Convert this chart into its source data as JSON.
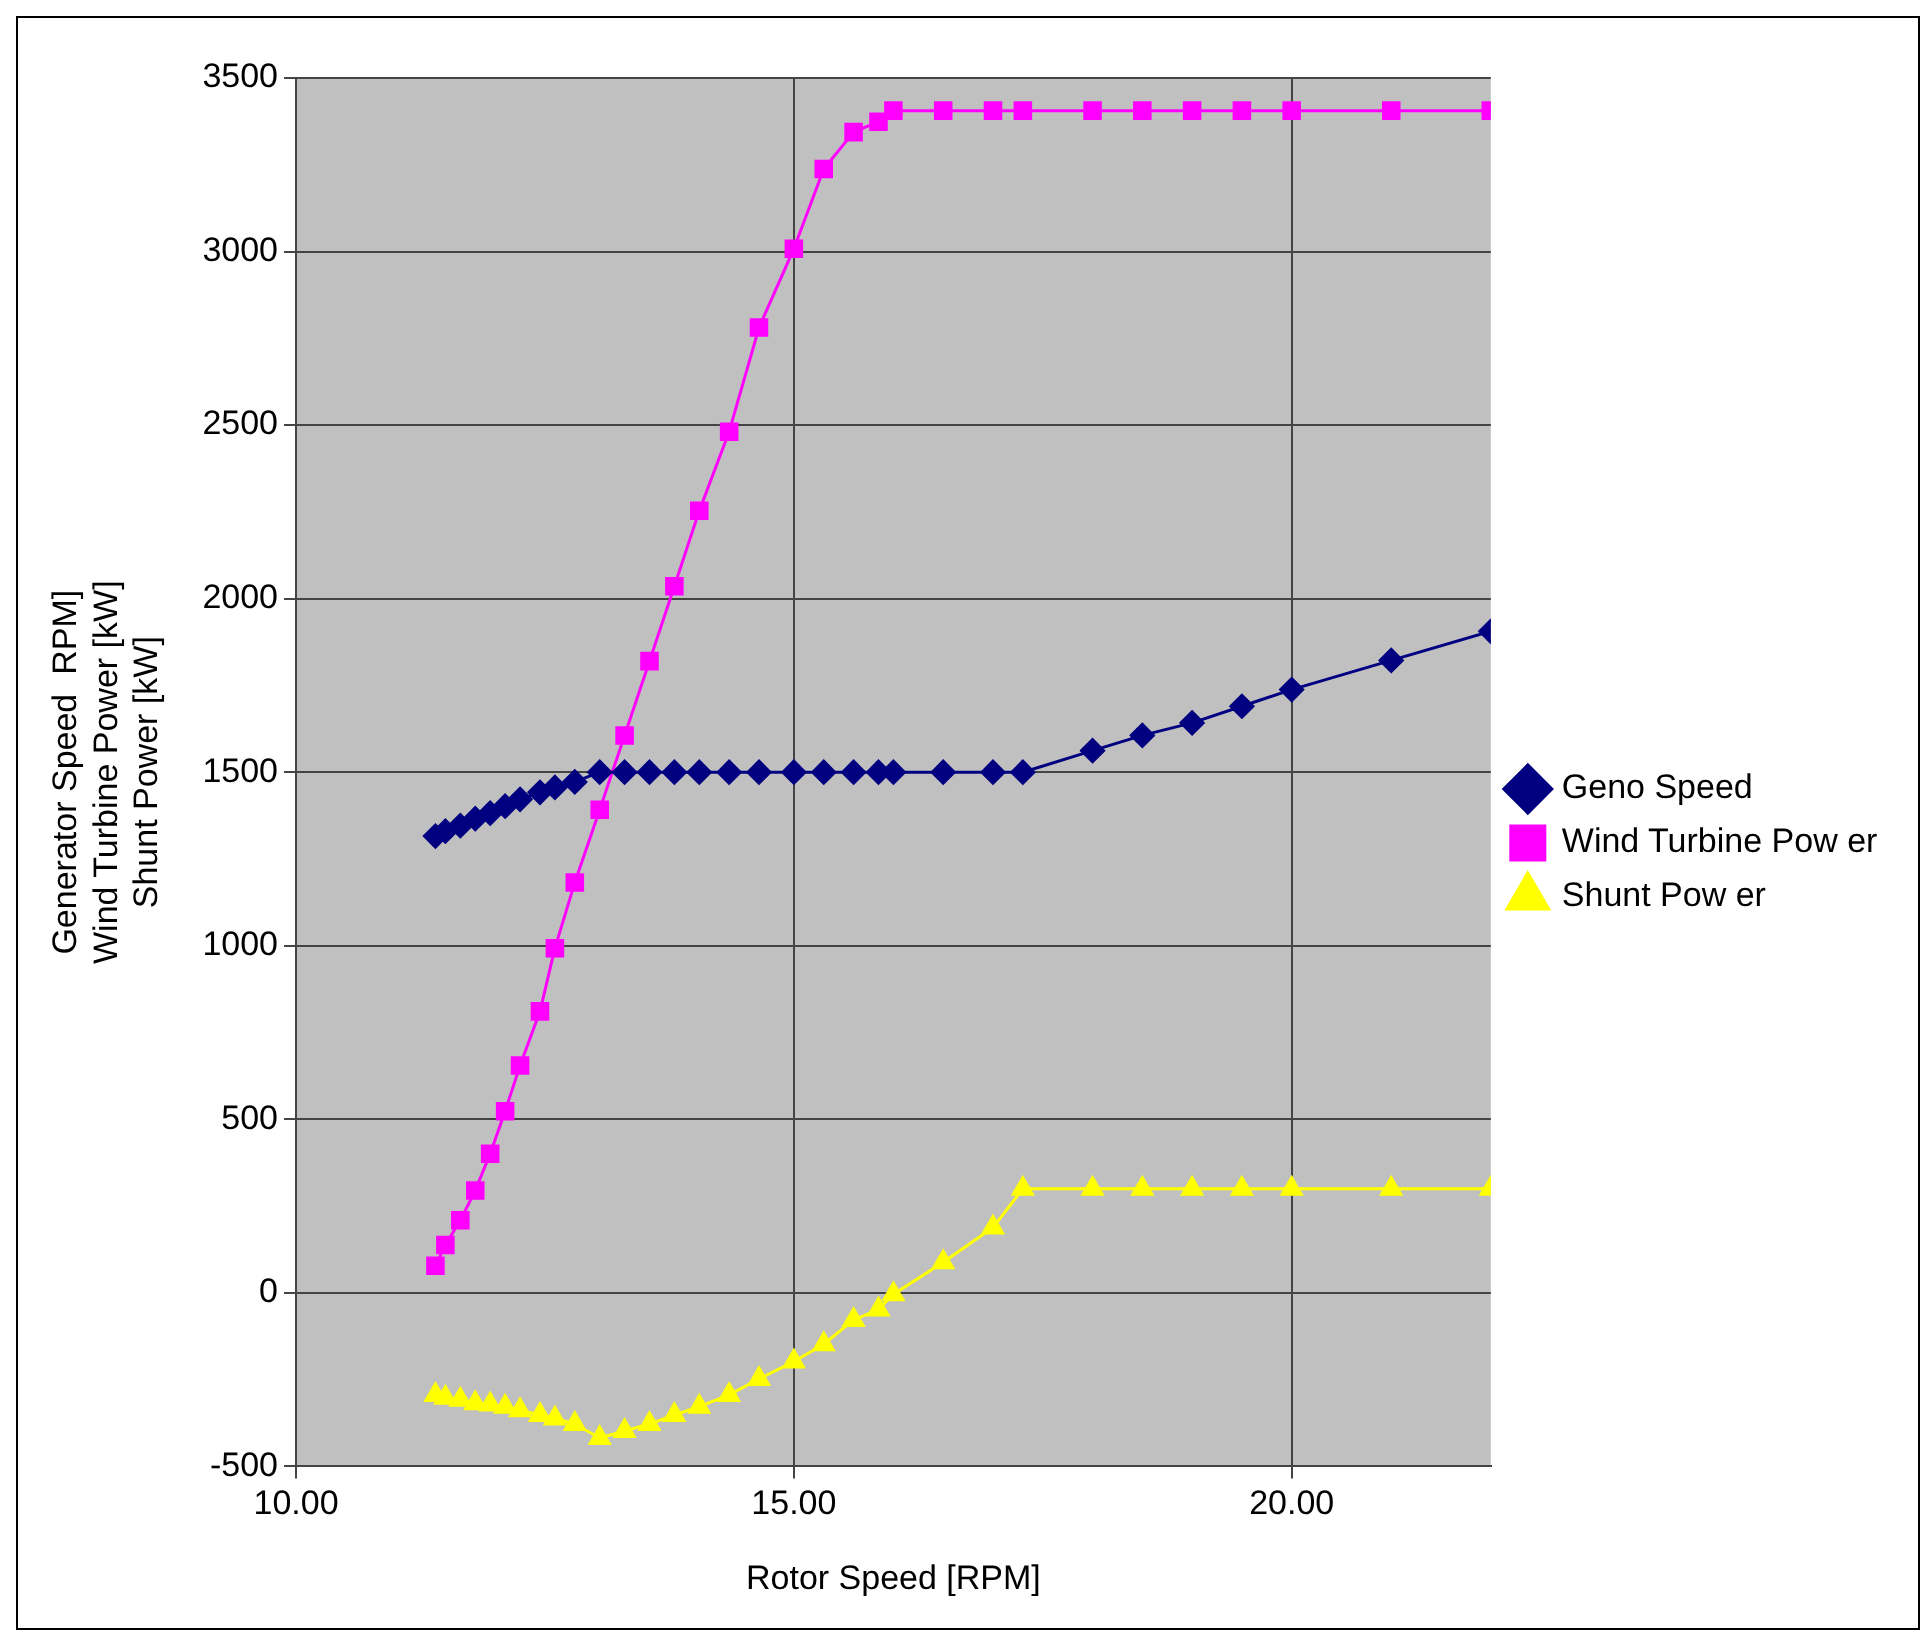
{
  "chart_data": {
    "type": "line",
    "xlabel": "Rotor Speed [RPM]",
    "ylabel": "Generator Speed  RPM]\nWind Turbine Power [kW]\nShunt Power [kW]",
    "x": [
      11.4,
      11.5,
      11.65,
      11.8,
      11.95,
      12.1,
      12.25,
      12.45,
      12.6,
      12.8,
      13.05,
      13.3,
      13.55,
      13.8,
      14.05,
      14.35,
      14.65,
      15.0,
      15.3,
      15.6,
      15.85,
      16.0,
      16.5,
      17.0,
      17.3,
      18.0,
      18.5,
      19.0,
      19.5,
      20.0,
      21.0,
      22.0
    ],
    "series": [
      {
        "name": "Geno Speed",
        "color": "#000080",
        "marker": "diamond",
        "values": [
          1316,
          1330,
          1346,
          1366,
          1382,
          1402,
          1422,
          1442,
          1456,
          1472,
          1500,
          1500,
          1500,
          1500,
          1500,
          1500,
          1500,
          1500,
          1500,
          1500,
          1500,
          1500,
          1500,
          1500,
          1500,
          1562,
          1606,
          1642,
          1690,
          1738,
          1822,
          1906
        ]
      },
      {
        "name": "Wind Turbine Pow er",
        "color": "#ff00ff",
        "marker": "square",
        "values": [
          78,
          138,
          209,
          295,
          401,
          523,
          655,
          811,
          993,
          1182,
          1392,
          1606,
          1820,
          2036,
          2253,
          2481,
          2781,
          3008,
          3238,
          3344,
          3374,
          3406,
          3406,
          3406,
          3406,
          3406,
          3406,
          3406,
          3406,
          3406,
          3406,
          3406
        ]
      },
      {
        "name": "Shunt Pow er",
        "color": "#ffff00",
        "marker": "triangle",
        "values": [
          -294,
          -302,
          -308,
          -318,
          -322,
          -328,
          -338,
          -352,
          -362,
          -378,
          -418,
          -398,
          -378,
          -352,
          -328,
          -294,
          -248,
          -198,
          -148,
          -78,
          -48,
          -4,
          88,
          188,
          300,
          300,
          300,
          300,
          300,
          300,
          300,
          300
        ]
      }
    ],
    "xlim": [
      10,
      22
    ],
    "xticks": [
      {
        "value": 10,
        "label": "10.00"
      },
      {
        "value": 15,
        "label": "15.00"
      },
      {
        "value": 20,
        "label": "20.00"
      }
    ],
    "ylim": [
      -500,
      3500
    ],
    "yticks": [
      -500,
      0,
      500,
      1000,
      1500,
      2000,
      2500,
      3000,
      3500
    ],
    "grid": true,
    "legend": "right",
    "line_style": "solid"
  }
}
